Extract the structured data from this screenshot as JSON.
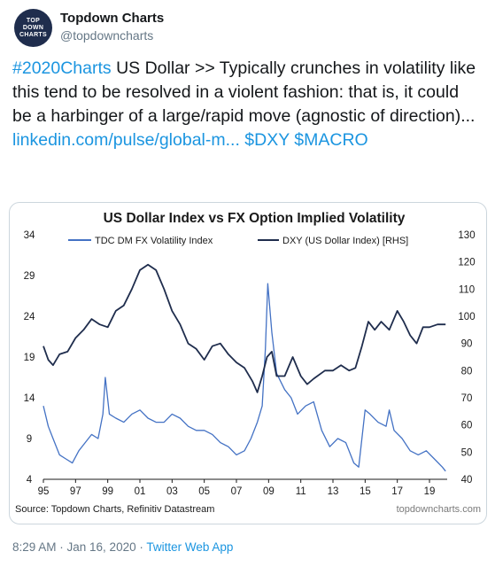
{
  "tweet": {
    "author_name": "Topdown Charts",
    "author_handle": "@topdowncharts",
    "avatar_text": [
      "TOP",
      "DOWN",
      "CHARTS"
    ],
    "hashtag": "#2020Charts",
    "text_body": " US Dollar >> Typically crunches in volatility like this tend to be resolved in a violent fashion: that is, it could be a harbinger of a large/rapid move (agnostic of direction)...",
    "link_text": "linkedin.com/pulse/global-m...",
    "cashtags": " $DXY $MACRO",
    "timestamp": "8:29 AM · Jan 16, 2020 · ",
    "source_app": "Twitter Web App"
  },
  "colors": {
    "link": "#1b95e0",
    "vol_series": "#4472c4",
    "dxy_series": "#1f2d4d",
    "muted": "#657786"
  },
  "chart_data": {
    "type": "line",
    "title": "US Dollar Index vs FX Option Implied Volatility",
    "source": "Source: Topdown Charts, Refinitiv Datastream",
    "watermark": "topdowncharts.com",
    "x_ticks": [
      "95",
      "97",
      "99",
      "01",
      "03",
      "05",
      "07",
      "09",
      "11",
      "13",
      "15",
      "17",
      "19"
    ],
    "xlim": [
      1995,
      2020.1
    ],
    "y_left_ticks": [
      "4",
      "9",
      "14",
      "19",
      "24",
      "29",
      "34"
    ],
    "y_left_lim": [
      4,
      34
    ],
    "y_right_ticks": [
      "40",
      "50",
      "60",
      "70",
      "80",
      "90",
      "100",
      "110",
      "120",
      "130"
    ],
    "y_right_lim": [
      40,
      130
    ],
    "legend_position": "top",
    "series": [
      {
        "name": "TDC DM FX Volatility Index",
        "axis": "left",
        "color": "#4472c4",
        "x": [
          1995.0,
          1995.3,
          1995.6,
          1996.0,
          1996.4,
          1996.8,
          1997.2,
          1997.6,
          1998.0,
          1998.4,
          1998.7,
          1998.85,
          1999.1,
          1999.5,
          2000.0,
          2000.5,
          2001.0,
          2001.5,
          2002.0,
          2002.5,
          2003.0,
          2003.5,
          2004.0,
          2004.5,
          2005.0,
          2005.5,
          2006.0,
          2006.5,
          2007.0,
          2007.5,
          2007.9,
          2008.3,
          2008.6,
          2008.8,
          2008.95,
          2009.2,
          2009.5,
          2010.0,
          2010.4,
          2010.8,
          2011.3,
          2011.8,
          2012.3,
          2012.8,
          2013.3,
          2013.8,
          2014.3,
          2014.6,
          2015.0,
          2015.3,
          2015.8,
          2016.3,
          2016.5,
          2016.8,
          2017.3,
          2017.8,
          2018.3,
          2018.8,
          2019.3,
          2019.8,
          2020.0
        ],
        "values": [
          13.0,
          10.5,
          9.0,
          7.0,
          6.5,
          6.0,
          7.5,
          8.5,
          9.5,
          9.0,
          12.0,
          16.5,
          12.0,
          11.5,
          11.0,
          12.0,
          12.5,
          11.5,
          11.0,
          11.0,
          12.0,
          11.5,
          10.5,
          10.0,
          10.0,
          9.5,
          8.5,
          8.0,
          7.0,
          7.5,
          9.0,
          11.0,
          13.0,
          20.0,
          28.0,
          22.0,
          17.0,
          15.0,
          14.0,
          12.0,
          13.0,
          13.5,
          10.0,
          8.0,
          9.0,
          8.5,
          6.0,
          5.5,
          12.5,
          12.0,
          11.0,
          10.5,
          12.5,
          10.0,
          9.0,
          7.5,
          7.0,
          7.5,
          6.5,
          5.5,
          5.0
        ]
      },
      {
        "name": "DXY (US Dollar Index) [RHS]",
        "axis": "right",
        "color": "#1f2d4d",
        "x": [
          1995.0,
          1995.3,
          1995.6,
          1996.0,
          1996.5,
          1997.0,
          1997.5,
          1998.0,
          1998.5,
          1999.0,
          1999.5,
          2000.0,
          2000.5,
          2001.0,
          2001.5,
          2002.0,
          2002.5,
          2003.0,
          2003.5,
          2004.0,
          2004.5,
          2005.0,
          2005.5,
          2006.0,
          2006.5,
          2007.0,
          2007.5,
          2008.0,
          2008.3,
          2008.6,
          2008.9,
          2009.2,
          2009.5,
          2010.0,
          2010.5,
          2011.0,
          2011.4,
          2011.8,
          2012.5,
          2013.0,
          2013.5,
          2014.0,
          2014.4,
          2014.8,
          2015.2,
          2015.6,
          2016.0,
          2016.5,
          2017.0,
          2017.4,
          2017.8,
          2018.2,
          2018.6,
          2019.0,
          2019.5,
          2020.0
        ],
        "values": [
          89,
          84,
          82,
          86,
          87,
          92,
          95,
          99,
          97,
          96,
          102,
          104,
          110,
          117,
          119,
          117,
          110,
          102,
          97,
          90,
          88,
          84,
          89,
          90,
          86,
          83,
          81,
          76,
          72,
          78,
          85,
          87,
          78,
          78,
          85,
          78,
          75,
          77,
          80,
          80,
          82,
          80,
          81,
          89,
          98,
          95,
          98,
          95,
          102,
          98,
          93,
          90,
          96,
          96,
          97,
          97
        ]
      }
    ]
  }
}
